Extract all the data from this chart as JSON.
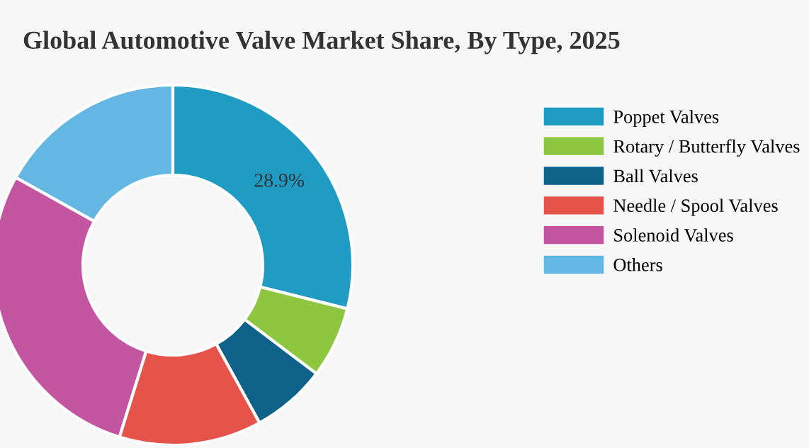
{
  "chart_data": {
    "type": "donut",
    "title": "Global Automotive Valve Market Share, By Type, 2025",
    "categories": [
      "Poppet Valves",
      "Rotary / Butterfly Valves",
      "Ball Valves",
      "Needle / Spool Valves",
      "Solenoid Valves",
      "Others"
    ],
    "values": [
      28.9,
      6.4,
      6.7,
      12.8,
      28.3,
      16.9
    ],
    "colors": [
      "#1f9bc4",
      "#8dc63f",
      "#0e6289",
      "#e5534b",
      "#c455a0",
      "#65b7e3"
    ],
    "value_labels": [
      "28.9%",
      null,
      null,
      null,
      null,
      null
    ],
    "legend": "right"
  }
}
